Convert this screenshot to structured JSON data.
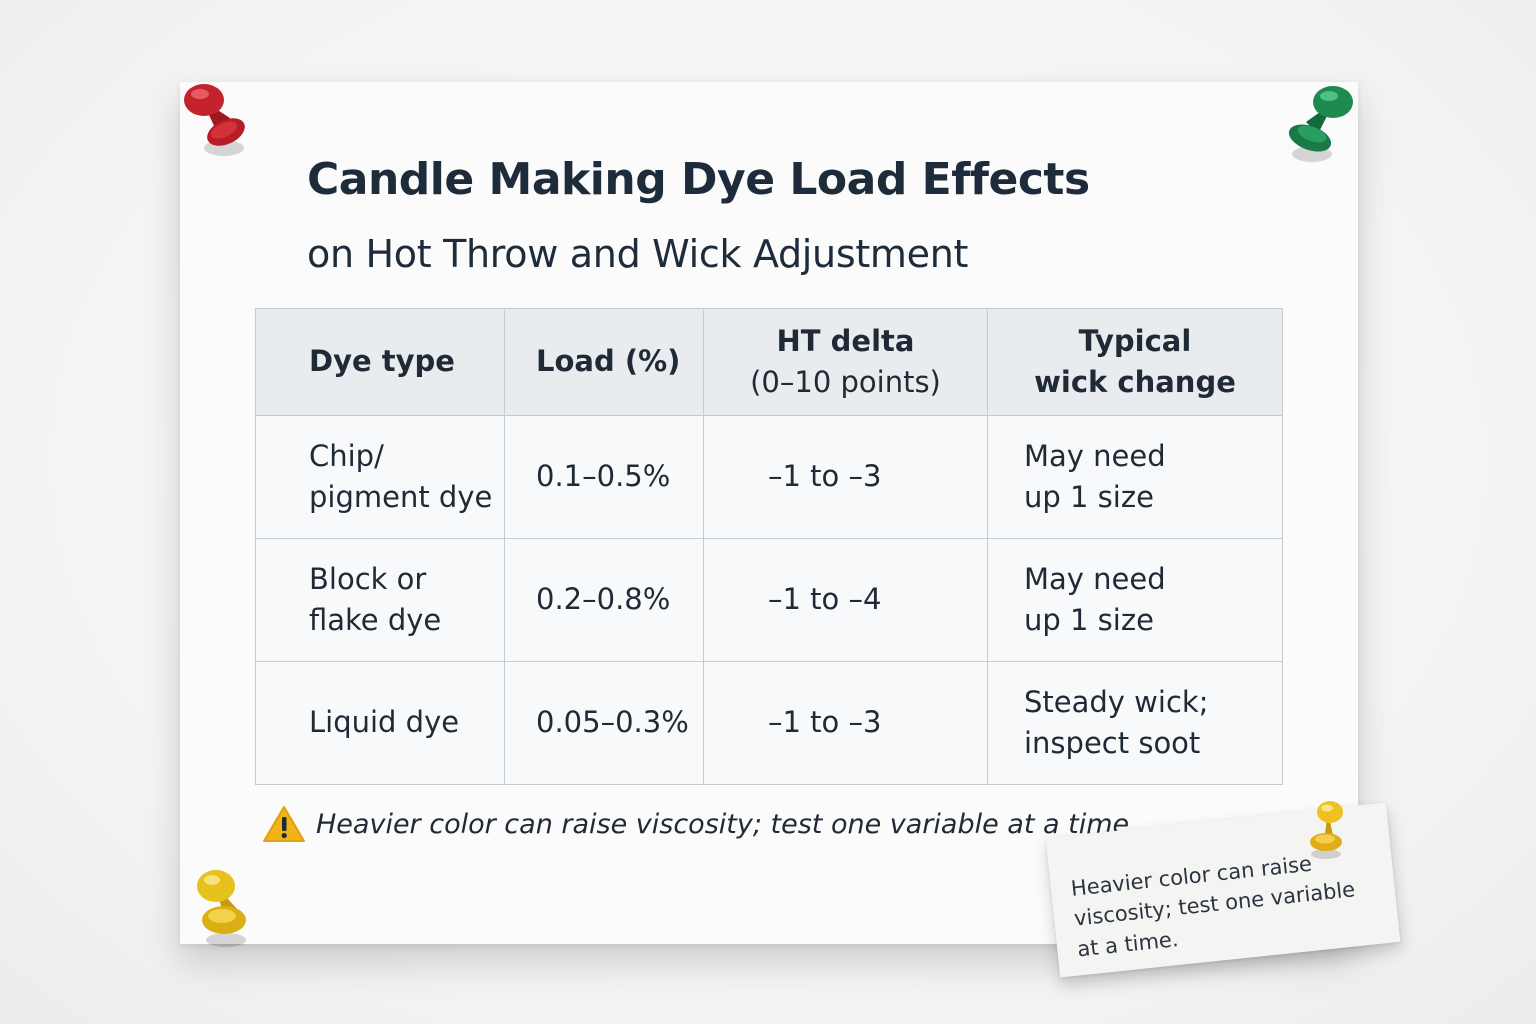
{
  "document": {
    "title": "Candle Making Dye Load Effects",
    "subtitle": "on Hot Throw and Wick Adjustment"
  },
  "table": {
    "headers": [
      {
        "lines": [
          "Dye type"
        ]
      },
      {
        "lines": [
          "Load (%)"
        ]
      },
      {
        "lines": [
          "HT delta",
          "(0–10 points)"
        ]
      },
      {
        "lines": [
          "Typical",
          "wick change"
        ]
      }
    ],
    "rows": [
      {
        "dye_type": [
          "Chip/",
          "pigment dye"
        ],
        "load": "0.1–0.5%",
        "ht_delta": "–1 to –3",
        "wick_change": [
          "May need",
          "up 1 size"
        ]
      },
      {
        "dye_type": [
          "Block or",
          "flake dye"
        ],
        "load": "0.2–0.8%",
        "ht_delta": "–1 to –4",
        "wick_change": [
          "May need",
          "up 1 size"
        ]
      },
      {
        "dye_type": [
          "Liquid dye"
        ],
        "load": "0.05–0.3%",
        "ht_delta": "–1 to –3",
        "wick_change": [
          "Steady wick;",
          "inspect soot"
        ]
      }
    ]
  },
  "note": {
    "icon": "warning-icon",
    "text": "Heavier color can raise viscosity; test one variable at a time."
  },
  "sticky_note": {
    "lines": [
      "Heavier color can raise",
      "viscosity; test one variable",
      "at a time."
    ]
  },
  "pins": {
    "top_left": "#c4222c",
    "top_right": "#1e8a4f",
    "bottom_left": "#e8c21c",
    "sticky": "#f0c020"
  },
  "colors": {
    "header_background": "#e9ecef",
    "warning": "#f2b316"
  }
}
